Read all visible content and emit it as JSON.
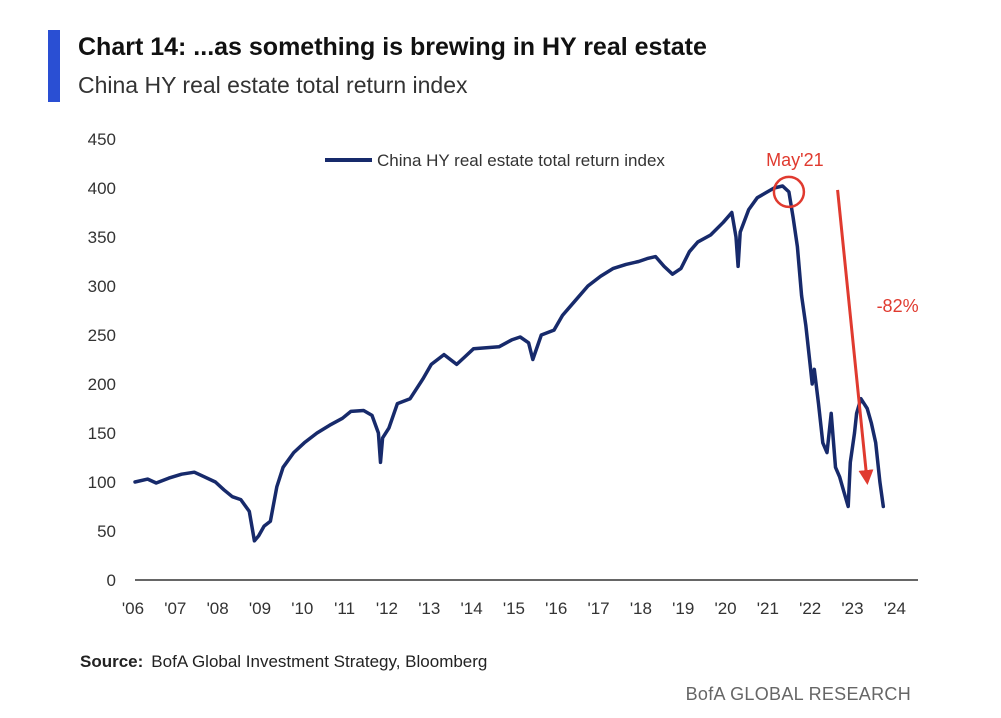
{
  "header": {
    "title": "Chart 14: ...as something is brewing in HY real estate",
    "subtitle": "China HY real estate total return index"
  },
  "footer": {
    "source_label": "Source:",
    "source_text": "BofA Global Investment Strategy, Bloomberg",
    "branding": "BofA GLOBAL RESEARCH"
  },
  "colors": {
    "series": "#172a6b",
    "annotation": "#e03a2f",
    "accent": "#2a4fd3",
    "axis": "#333333"
  },
  "chart_data": {
    "type": "line",
    "title": "",
    "xlabel": "",
    "ylabel": "",
    "xlim": [
      2006.0,
      2024.5
    ],
    "ylim": [
      0,
      450
    ],
    "yticks": [
      0,
      50,
      100,
      150,
      200,
      250,
      300,
      350,
      400,
      450
    ],
    "xtick_labels": [
      "'06",
      "'07",
      "'08",
      "'09",
      "'10",
      "'11",
      "'12",
      "'13",
      "'14",
      "'15",
      "'16",
      "'17",
      "'18",
      "'19",
      "'20",
      "'21",
      "'22",
      "'23",
      "'24"
    ],
    "grid": false,
    "legend": "top-center",
    "series": [
      {
        "name": "China HY real estate total return index",
        "x": [
          2006.0,
          2006.3,
          2006.5,
          2006.8,
          2007.1,
          2007.4,
          2007.6,
          2007.9,
          2008.1,
          2008.3,
          2008.5,
          2008.7,
          2008.82,
          2008.92,
          2009.05,
          2009.2,
          2009.35,
          2009.5,
          2009.75,
          2010.0,
          2010.3,
          2010.6,
          2010.9,
          2011.1,
          2011.4,
          2011.6,
          2011.75,
          2011.8,
          2011.85,
          2012.0,
          2012.2,
          2012.5,
          2012.8,
          2013.0,
          2013.3,
          2013.6,
          2013.8,
          2014.0,
          2014.3,
          2014.6,
          2014.9,
          2015.1,
          2015.3,
          2015.4,
          2015.6,
          2015.9,
          2016.1,
          2016.4,
          2016.7,
          2017.0,
          2017.3,
          2017.6,
          2017.9,
          2018.1,
          2018.3,
          2018.5,
          2018.7,
          2018.9,
          2019.1,
          2019.3,
          2019.6,
          2019.9,
          2020.1,
          2020.2,
          2020.25,
          2020.3,
          2020.5,
          2020.7,
          2020.9,
          2021.1,
          2021.3,
          2021.45,
          2021.55,
          2021.65,
          2021.75,
          2021.85,
          2021.95,
          2022.0,
          2022.05,
          2022.15,
          2022.25,
          2022.35,
          2022.45,
          2022.55,
          2022.65,
          2022.75,
          2022.85,
          2022.9,
          2023.0,
          2023.05,
          2023.15,
          2023.3,
          2023.4,
          2023.5,
          2023.6,
          2023.68
        ],
        "values": [
          100,
          103,
          99,
          104,
          108,
          110,
          106,
          100,
          92,
          85,
          82,
          70,
          40,
          45,
          55,
          60,
          95,
          115,
          130,
          140,
          150,
          158,
          165,
          172,
          173,
          168,
          150,
          120,
          145,
          155,
          180,
          185,
          205,
          220,
          230,
          220,
          228,
          236,
          237,
          238,
          245,
          248,
          242,
          225,
          250,
          255,
          270,
          285,
          300,
          310,
          318,
          322,
          325,
          328,
          330,
          320,
          312,
          318,
          335,
          345,
          352,
          365,
          375,
          350,
          320,
          355,
          378,
          390,
          395,
          400,
          402,
          396,
          370,
          340,
          290,
          260,
          220,
          200,
          215,
          180,
          140,
          130,
          170,
          115,
          105,
          90,
          75,
          120,
          150,
          170,
          185,
          175,
          160,
          140,
          100,
          75
        ]
      }
    ],
    "annotations": [
      {
        "type": "circle",
        "x": 2021.45,
        "y": 396,
        "label": "May'21"
      },
      {
        "type": "arrow",
        "from": [
          2022.6,
          398
        ],
        "to": [
          2023.3,
          100
        ],
        "label": "-82%"
      }
    ]
  }
}
